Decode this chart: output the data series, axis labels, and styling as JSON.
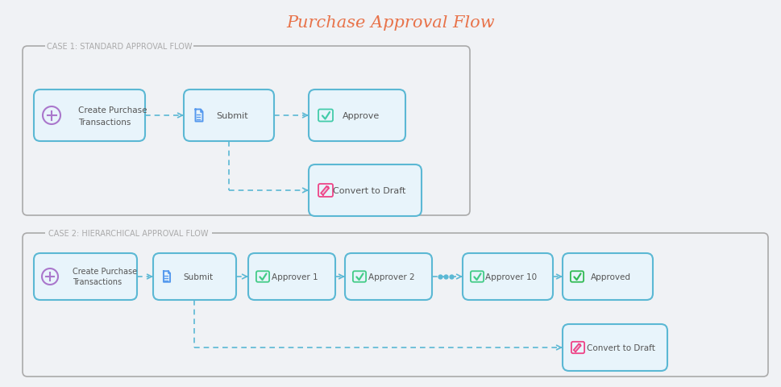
{
  "title": "Purchase Approval Flow",
  "title_color": "#e8734a",
  "title_fontsize": 15,
  "bg_color": "#f0f2f5",
  "box_bg": "#e8f4fb",
  "box_border": "#5bb8d4",
  "section_label_color": "#aaaaaa",
  "case1_label": "CASE 1: STANDARD APPROVAL FLOW",
  "case2_label": "CASE 2: HIERARCHICAL APPROVAL FLOW",
  "arrow_color": "#5bb8d4",
  "text_color": "#555555",
  "icon_circle_color": "#aa77cc",
  "icon_check_teal": "#44ccaa",
  "icon_check_pink": "#ee4488",
  "icon_doc_color": "#5599ee",
  "icon_check_green": "#44cc88",
  "icon_approved_green": "#33bb55",
  "dots_color": "#5bb8d4"
}
